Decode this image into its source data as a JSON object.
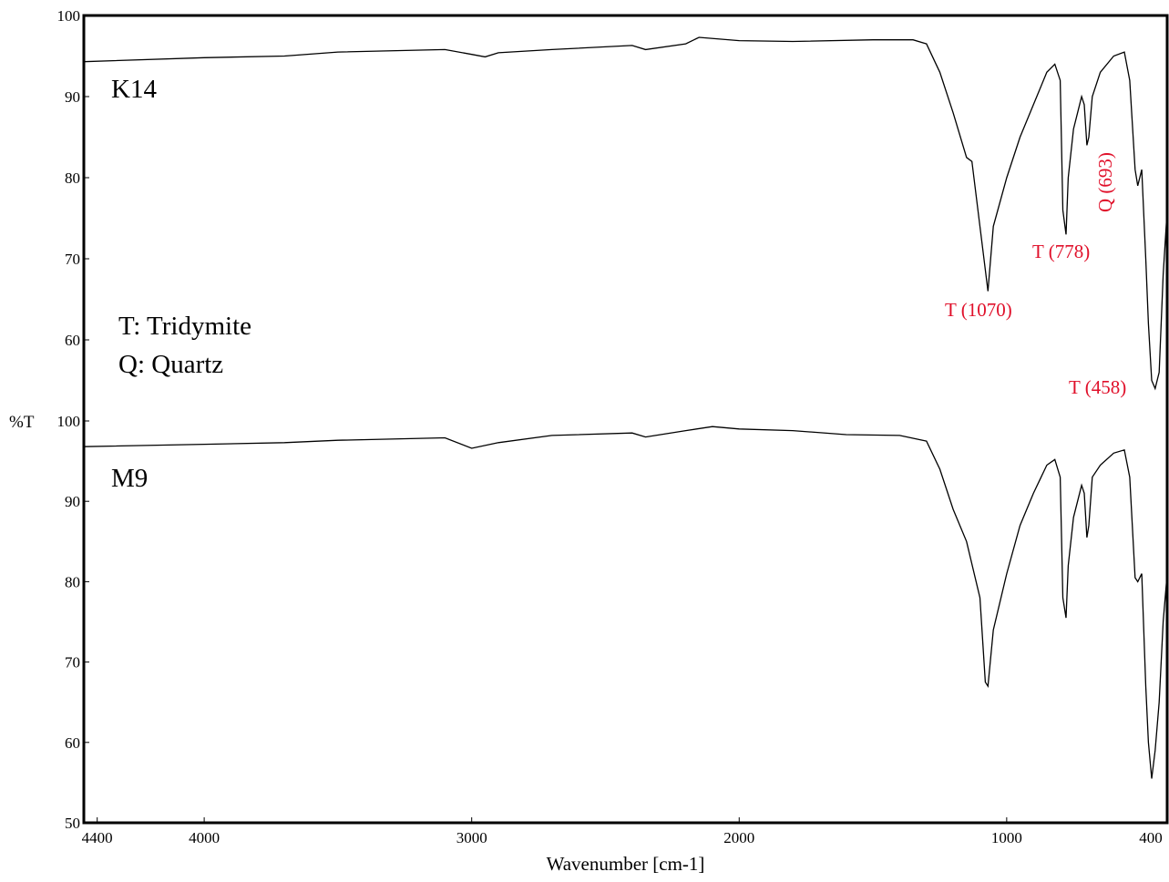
{
  "chart_data": [
    {
      "type": "line",
      "ylabel": "%T",
      "annotations": [
        "T: Tridymite",
        "Q: Quartz",
        "T (1070)",
        "T (778)",
        "Q (693)",
        "T (458)"
      ],
      "xlim": [
        4450,
        400
      ],
      "ylim": [
        50,
        100
      ],
      "yticks": [
        60,
        70,
        80,
        90,
        100
      ],
      "x": [
        4450,
        4000,
        3700,
        3500,
        3100,
        3000,
        2950,
        2900,
        2700,
        2400,
        2350,
        2200,
        2150,
        2000,
        1800,
        1500,
        1350,
        1300,
        1250,
        1200,
        1150,
        1130,
        1100,
        1070,
        1050,
        1000,
        950,
        900,
        850,
        820,
        800,
        790,
        778,
        770,
        750,
        720,
        710,
        700,
        693,
        680,
        650,
        600,
        560,
        540,
        520,
        510,
        495,
        480,
        470,
        458,
        445,
        430,
        415,
        400
      ],
      "series": [
        {
          "name": "K14",
          "color": "#000000",
          "values": [
            94.3,
            94.8,
            95,
            95.5,
            95.8,
            95.2,
            94.9,
            95.4,
            95.8,
            96.3,
            95.8,
            96.5,
            97.3,
            96.9,
            96.8,
            97,
            97,
            96.5,
            93,
            88,
            82.5,
            82,
            74,
            66,
            74,
            80,
            85,
            89,
            93,
            94,
            92,
            76,
            73,
            80,
            86,
            90,
            89,
            84,
            85,
            90,
            93,
            95,
            95.5,
            92,
            81,
            79,
            81,
            70,
            62,
            55,
            54,
            56,
            68,
            76
          ]
        }
      ]
    },
    {
      "type": "line",
      "xlabel": "Wavenumber [cm-1]",
      "xlim": [
        4450,
        400
      ],
      "xticks": [
        4400,
        4000,
        3000,
        2000,
        1000,
        400
      ],
      "ylim": [
        50,
        100
      ],
      "yticks": [
        50,
        60,
        70,
        80,
        90,
        100
      ],
      "x": [
        4450,
        4000,
        3700,
        3500,
        3100,
        3000,
        2900,
        2700,
        2400,
        2350,
        2200,
        2100,
        2000,
        1800,
        1600,
        1400,
        1300,
        1250,
        1200,
        1150,
        1100,
        1080,
        1070,
        1050,
        1000,
        950,
        900,
        850,
        820,
        800,
        790,
        778,
        770,
        750,
        720,
        710,
        700,
        693,
        680,
        650,
        600,
        560,
        540,
        520,
        510,
        495,
        480,
        470,
        458,
        445,
        430,
        415,
        400
      ],
      "series": [
        {
          "name": "M9",
          "color": "#000000",
          "values": [
            96.8,
            97.1,
            97.3,
            97.6,
            97.9,
            96.6,
            97.3,
            98.2,
            98.5,
            98,
            98.8,
            99.3,
            99,
            98.8,
            98.3,
            98.2,
            97.5,
            94,
            89,
            85,
            78,
            67.5,
            67,
            74,
            81,
            87,
            91,
            94.5,
            95.2,
            93,
            78,
            75.5,
            82,
            88,
            92,
            91,
            85.5,
            87,
            93,
            94.5,
            96,
            96.4,
            93,
            80.5,
            80,
            81,
            67,
            60,
            55.5,
            59,
            65,
            75,
            81
          ]
        }
      ]
    }
  ]
}
